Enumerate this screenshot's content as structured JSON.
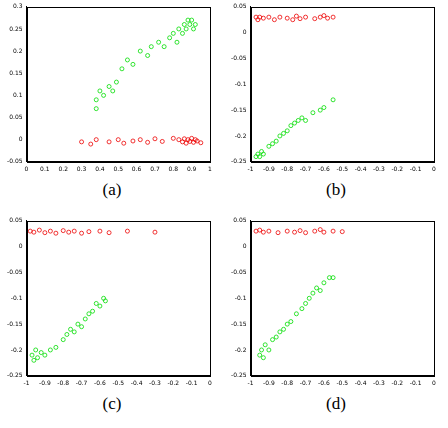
{
  "chart_data": [
    {
      "type": "scatter",
      "title": "(a)",
      "grid": false,
      "tick_labels": true,
      "xlim": [
        0,
        1
      ],
      "xticks": [
        0,
        0.1,
        0.2,
        0.3,
        0.4,
        0.5,
        0.6,
        0.7,
        0.8,
        0.9,
        1
      ],
      "ylim": [
        -0.05,
        0.3
      ],
      "yticks": [
        -0.05,
        0,
        0.05,
        0.1,
        0.15,
        0.2,
        0.25,
        0.3
      ],
      "series": [
        {
          "color": "#00dd00",
          "marker": "circle",
          "values": [
            [
              0.38,
              0.09
            ],
            [
              0.38,
              0.07
            ],
            [
              0.4,
              0.11
            ],
            [
              0.42,
              0.1
            ],
            [
              0.45,
              0.12
            ],
            [
              0.47,
              0.11
            ],
            [
              0.49,
              0.13
            ],
            [
              0.52,
              0.16
            ],
            [
              0.55,
              0.18
            ],
            [
              0.58,
              0.17
            ],
            [
              0.62,
              0.2
            ],
            [
              0.66,
              0.19
            ],
            [
              0.68,
              0.21
            ],
            [
              0.72,
              0.22
            ],
            [
              0.75,
              0.21
            ],
            [
              0.78,
              0.23
            ],
            [
              0.8,
              0.24
            ],
            [
              0.82,
              0.22
            ],
            [
              0.83,
              0.25
            ],
            [
              0.85,
              0.24
            ],
            [
              0.86,
              0.26
            ],
            [
              0.87,
              0.25
            ],
            [
              0.88,
              0.27
            ],
            [
              0.89,
              0.26
            ],
            [
              0.9,
              0.27
            ],
            [
              0.91,
              0.25
            ],
            [
              0.92,
              0.26
            ]
          ]
        },
        {
          "color": "#ee0000",
          "marker": "circle",
          "values": [
            [
              0.3,
              -0.005
            ],
            [
              0.35,
              -0.01
            ],
            [
              0.38,
              0.0
            ],
            [
              0.45,
              -0.005
            ],
            [
              0.5,
              0.0
            ],
            [
              0.53,
              -0.008
            ],
            [
              0.58,
              -0.003
            ],
            [
              0.62,
              0.0
            ],
            [
              0.66,
              -0.006
            ],
            [
              0.7,
              0.002
            ],
            [
              0.74,
              -0.004
            ],
            [
              0.8,
              0.003
            ],
            [
              0.83,
              0.0
            ],
            [
              0.85,
              -0.005
            ],
            [
              0.86,
              0.002
            ],
            [
              0.87,
              -0.008
            ],
            [
              0.88,
              0.0
            ],
            [
              0.89,
              -0.004
            ],
            [
              0.9,
              0.003
            ],
            [
              0.91,
              -0.006
            ],
            [
              0.92,
              0.0
            ],
            [
              0.93,
              -0.003
            ],
            [
              0.95,
              -0.007
            ]
          ]
        }
      ]
    },
    {
      "type": "scatter",
      "title": "(b)",
      "grid": false,
      "tick_labels": true,
      "xlim": [
        -1,
        0
      ],
      "xticks": [
        -1,
        -0.9,
        -0.8,
        -0.7,
        -0.6,
        -0.5,
        -0.4,
        -0.3,
        -0.2,
        -0.1,
        0
      ],
      "ylim": [
        -0.25,
        0.05
      ],
      "yticks": [
        -0.25,
        -0.2,
        -0.15,
        -0.1,
        -0.05,
        0,
        0.05
      ],
      "series": [
        {
          "color": "#00dd00",
          "marker": "circle",
          "values": [
            [
              -0.97,
              -0.24
            ],
            [
              -0.96,
              -0.235
            ],
            [
              -0.95,
              -0.24
            ],
            [
              -0.94,
              -0.23
            ],
            [
              -0.93,
              -0.235
            ],
            [
              -0.9,
              -0.22
            ],
            [
              -0.88,
              -0.215
            ],
            [
              -0.86,
              -0.21
            ],
            [
              -0.84,
              -0.2
            ],
            [
              -0.82,
              -0.195
            ],
            [
              -0.8,
              -0.19
            ],
            [
              -0.78,
              -0.18
            ],
            [
              -0.76,
              -0.175
            ],
            [
              -0.74,
              -0.17
            ],
            [
              -0.72,
              -0.165
            ],
            [
              -0.7,
              -0.17
            ],
            [
              -0.66,
              -0.155
            ],
            [
              -0.62,
              -0.15
            ],
            [
              -0.6,
              -0.145
            ],
            [
              -0.55,
              -0.13
            ]
          ]
        },
        {
          "color": "#ee0000",
          "marker": "circle",
          "values": [
            [
              -0.97,
              0.03
            ],
            [
              -0.96,
              0.025
            ],
            [
              -0.95,
              0.03
            ],
            [
              -0.93,
              0.028
            ],
            [
              -0.9,
              0.03
            ],
            [
              -0.87,
              0.025
            ],
            [
              -0.84,
              0.03
            ],
            [
              -0.8,
              0.028
            ],
            [
              -0.77,
              0.025
            ],
            [
              -0.75,
              0.032
            ],
            [
              -0.73,
              0.027
            ],
            [
              -0.7,
              0.03
            ],
            [
              -0.65,
              0.027
            ],
            [
              -0.62,
              0.03
            ],
            [
              -0.6,
              0.033
            ],
            [
              -0.58,
              0.028
            ],
            [
              -0.55,
              0.03
            ]
          ]
        }
      ]
    },
    {
      "type": "scatter",
      "title": "(c)",
      "grid": false,
      "tick_labels": true,
      "xlim": [
        -1,
        0
      ],
      "xticks": [
        -1,
        -0.9,
        -0.8,
        -0.7,
        -0.6,
        -0.5,
        -0.4,
        -0.3,
        -0.2,
        -0.1,
        0
      ],
      "ylim": [
        -0.25,
        0.05
      ],
      "yticks": [
        -0.25,
        -0.2,
        -0.15,
        -0.1,
        -0.05,
        0,
        0.05
      ],
      "series": [
        {
          "color": "#00dd00",
          "marker": "circle",
          "values": [
            [
              -0.97,
              -0.21
            ],
            [
              -0.96,
              -0.22
            ],
            [
              -0.95,
              -0.2
            ],
            [
              -0.94,
              -0.215
            ],
            [
              -0.92,
              -0.205
            ],
            [
              -0.9,
              -0.21
            ],
            [
              -0.87,
              -0.2
            ],
            [
              -0.84,
              -0.195
            ],
            [
              -0.8,
              -0.18
            ],
            [
              -0.78,
              -0.17
            ],
            [
              -0.76,
              -0.16
            ],
            [
              -0.74,
              -0.165
            ],
            [
              -0.72,
              -0.15
            ],
            [
              -0.7,
              -0.155
            ],
            [
              -0.68,
              -0.14
            ],
            [
              -0.66,
              -0.13
            ],
            [
              -0.64,
              -0.125
            ],
            [
              -0.62,
              -0.11
            ],
            [
              -0.6,
              -0.115
            ],
            [
              -0.58,
              -0.1
            ],
            [
              -0.57,
              -0.105
            ]
          ]
        },
        {
          "color": "#ee0000",
          "marker": "circle",
          "values": [
            [
              -0.98,
              0.03
            ],
            [
              -0.96,
              0.028
            ],
            [
              -0.93,
              0.032
            ],
            [
              -0.9,
              0.027
            ],
            [
              -0.87,
              0.03
            ],
            [
              -0.84,
              0.026
            ],
            [
              -0.8,
              0.031
            ],
            [
              -0.77,
              0.028
            ],
            [
              -0.74,
              0.03
            ],
            [
              -0.7,
              0.026
            ],
            [
              -0.66,
              0.029
            ],
            [
              -0.6,
              0.03
            ],
            [
              -0.55,
              0.027
            ],
            [
              -0.45,
              0.03
            ],
            [
              -0.3,
              0.028
            ]
          ]
        }
      ]
    },
    {
      "type": "scatter",
      "title": "(d)",
      "grid": false,
      "tick_labels": true,
      "xlim": [
        -1,
        0
      ],
      "xticks": [
        -1,
        -0.9,
        -0.8,
        -0.7,
        -0.6,
        -0.5,
        -0.4,
        -0.3,
        -0.2,
        -0.1,
        0
      ],
      "ylim": [
        -0.25,
        0.05
      ],
      "yticks": [
        -0.25,
        -0.2,
        -0.15,
        -0.1,
        -0.05,
        0,
        0.05
      ],
      "series": [
        {
          "color": "#00dd00",
          "marker": "circle",
          "values": [
            [
              -0.95,
              -0.21
            ],
            [
              -0.94,
              -0.2
            ],
            [
              -0.93,
              -0.215
            ],
            [
              -0.92,
              -0.19
            ],
            [
              -0.9,
              -0.2
            ],
            [
              -0.88,
              -0.18
            ],
            [
              -0.86,
              -0.175
            ],
            [
              -0.84,
              -0.165
            ],
            [
              -0.82,
              -0.16
            ],
            [
              -0.8,
              -0.15
            ],
            [
              -0.78,
              -0.145
            ],
            [
              -0.75,
              -0.13
            ],
            [
              -0.72,
              -0.12
            ],
            [
              -0.7,
              -0.11
            ],
            [
              -0.68,
              -0.1
            ],
            [
              -0.66,
              -0.09
            ],
            [
              -0.64,
              -0.08
            ],
            [
              -0.62,
              -0.085
            ],
            [
              -0.6,
              -0.07
            ],
            [
              -0.57,
              -0.06
            ],
            [
              -0.55,
              -0.06
            ]
          ]
        },
        {
          "color": "#ee0000",
          "marker": "circle",
          "values": [
            [
              -0.97,
              0.03
            ],
            [
              -0.95,
              0.032
            ],
            [
              -0.93,
              0.028
            ],
            [
              -0.9,
              0.03
            ],
            [
              -0.85,
              0.027
            ],
            [
              -0.8,
              0.03
            ],
            [
              -0.76,
              0.028
            ],
            [
              -0.73,
              0.031
            ],
            [
              -0.7,
              0.027
            ],
            [
              -0.65,
              0.03
            ],
            [
              -0.62,
              0.033
            ],
            [
              -0.6,
              0.028
            ],
            [
              -0.55,
              0.03
            ],
            [
              -0.5,
              0.029
            ]
          ]
        }
      ]
    }
  ]
}
